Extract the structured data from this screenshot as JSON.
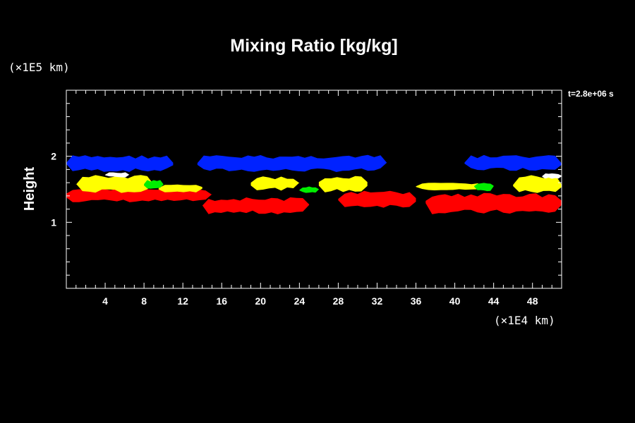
{
  "chart_data": {
    "type": "heatmap",
    "title": "Mixing Ratio [kg/kg]",
    "ylabel": "Height",
    "y_unit_label": "(×1E5 km)",
    "x_unit_label": "(×1E4 km)",
    "time_label": "t=2.8e+06 s",
    "xlim": [
      0,
      51
    ],
    "ylim": [
      0,
      3
    ],
    "x_ticks": [
      4,
      8,
      12,
      16,
      20,
      24,
      28,
      32,
      36,
      40,
      44,
      48
    ],
    "y_ticks": [
      1,
      2
    ],
    "grid": false,
    "colors": {
      "blue": "#0022ff",
      "yellow": "#ffff00",
      "green": "#00ee00",
      "white": "#ffffff",
      "red": "#ff0000",
      "background": "#000000"
    },
    "regions": [
      {
        "color": "blue",
        "segments": [
          {
            "x": [
              0,
              11
            ],
            "y": [
              1.76,
              2.02
            ]
          },
          {
            "x": [
              13.5,
              33
            ],
            "y": [
              1.76,
              2.02
            ]
          },
          {
            "x": [
              41,
              51
            ],
            "y": [
              1.78,
              2.02
            ]
          }
        ]
      },
      {
        "color": "red",
        "segments": [
          {
            "x": [
              0,
              15
            ],
            "y": [
              1.3,
              1.52
            ]
          },
          {
            "x": [
              14,
              25
            ],
            "y": [
              1.12,
              1.38
            ]
          },
          {
            "x": [
              28,
              36
            ],
            "y": [
              1.22,
              1.48
            ]
          },
          {
            "x": [
              37,
              51
            ],
            "y": [
              1.12,
              1.45
            ]
          }
        ]
      },
      {
        "color": "yellow",
        "segments": [
          {
            "x": [
              1,
              9
            ],
            "y": [
              1.44,
              1.72
            ]
          },
          {
            "x": [
              9.5,
              14
            ],
            "y": [
              1.45,
              1.58
            ]
          },
          {
            "x": [
              19,
              24
            ],
            "y": [
              1.48,
              1.7
            ]
          },
          {
            "x": [
              26,
              31
            ],
            "y": [
              1.45,
              1.7
            ]
          },
          {
            "x": [
              36,
              43
            ],
            "y": [
              1.48,
              1.6
            ]
          },
          {
            "x": [
              46,
              51
            ],
            "y": [
              1.43,
              1.72
            ]
          }
        ]
      },
      {
        "color": "green",
        "segments": [
          {
            "x": [
              8,
              10
            ],
            "y": [
              1.5,
              1.64
            ]
          },
          {
            "x": [
              24,
              26
            ],
            "y": [
              1.44,
              1.55
            ]
          },
          {
            "x": [
              42,
              44
            ],
            "y": [
              1.47,
              1.6
            ]
          }
        ]
      },
      {
        "color": "white",
        "segments": [
          {
            "x": [
              4,
              6.5
            ],
            "y": [
              1.68,
              1.76
            ]
          },
          {
            "x": [
              49,
              51
            ],
            "y": [
              1.66,
              1.74
            ]
          }
        ]
      }
    ]
  }
}
